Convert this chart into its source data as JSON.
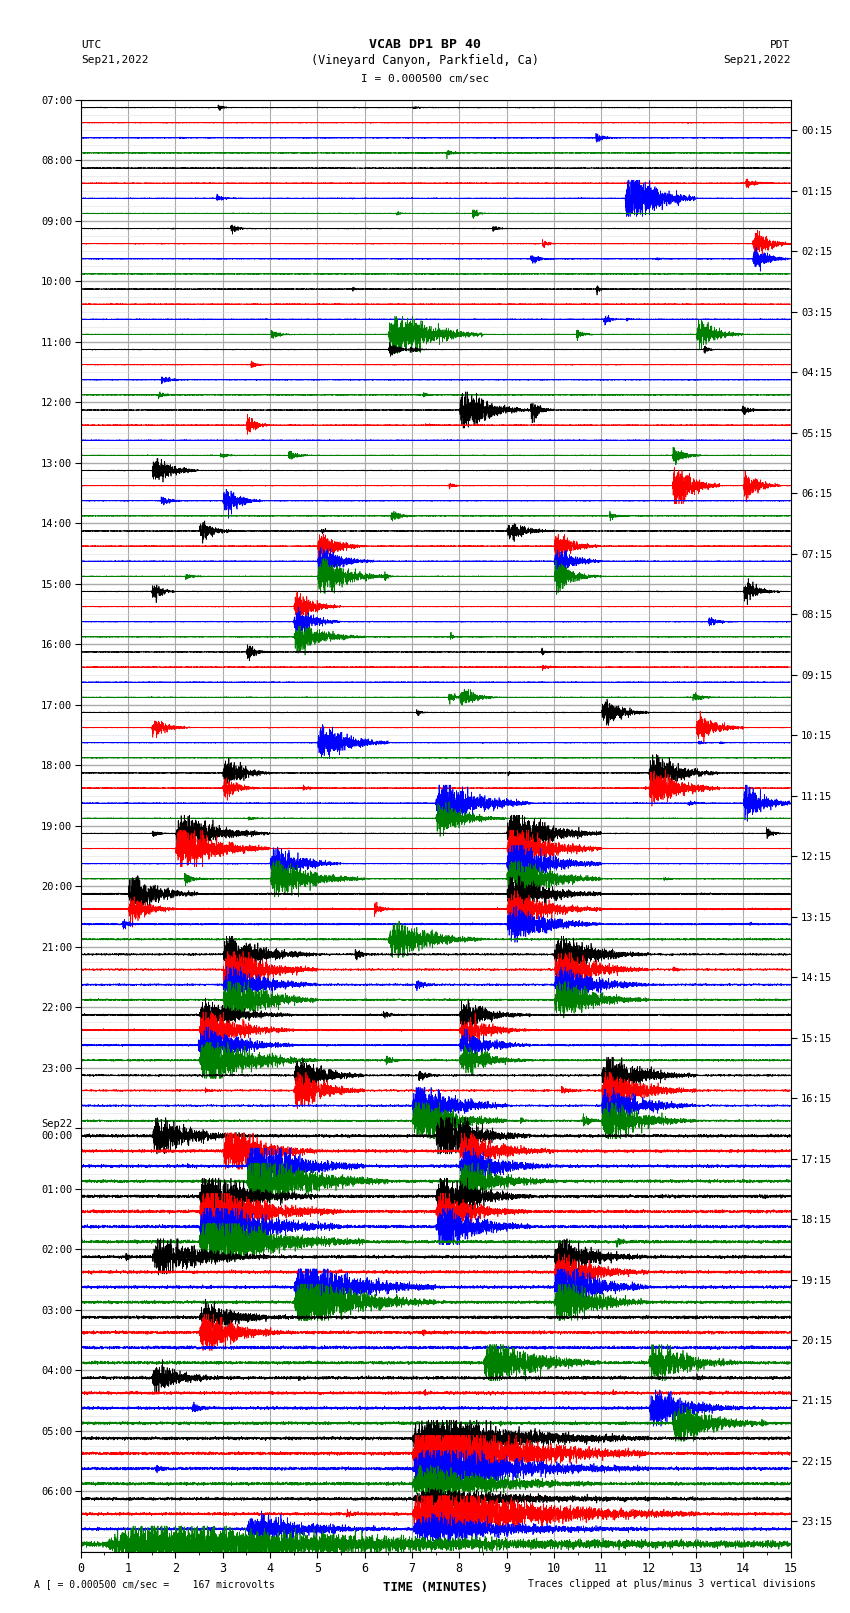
{
  "title_line1": "VCAB DP1 BP 40",
  "title_line2": "(Vineyard Canyon, Parkfield, Ca)",
  "scale_label": "I = 0.000500 cm/sec",
  "left_label_top": "UTC",
  "left_label_date": "Sep21,2022",
  "right_label_top": "PDT",
  "right_label_date": "Sep21,2022",
  "bottom_label": "TIME (MINUTES)",
  "footer_left": "A [ = 0.000500 cm/sec =    167 microvolts",
  "footer_right": "Traces clipped at plus/minus 3 vertical divisions",
  "left_times": [
    "07:00",
    "08:00",
    "09:00",
    "10:00",
    "11:00",
    "12:00",
    "13:00",
    "14:00",
    "15:00",
    "16:00",
    "17:00",
    "18:00",
    "19:00",
    "20:00",
    "21:00",
    "22:00",
    "23:00",
    "Sep22\n00:00",
    "01:00",
    "02:00",
    "03:00",
    "04:00",
    "05:00",
    "06:00"
  ],
  "right_times": [
    "00:15",
    "01:15",
    "02:15",
    "03:15",
    "04:15",
    "05:15",
    "06:15",
    "07:15",
    "08:15",
    "09:15",
    "10:15",
    "11:15",
    "12:15",
    "13:15",
    "14:15",
    "15:15",
    "16:15",
    "17:15",
    "18:15",
    "19:15",
    "20:15",
    "21:15",
    "22:15",
    "23:15"
  ],
  "colors": [
    "black",
    "red",
    "blue",
    "green"
  ],
  "n_rows": 24,
  "n_traces_per_row": 4,
  "minutes": 15,
  "background_color": "white",
  "grid_color": "#aaaaaa",
  "grid_minor_color": "#dddddd",
  "noise_base": 0.03,
  "event_data": [
    {
      "row": 1,
      "trace": 2,
      "time": 11.5,
      "amp": 3.0,
      "dur": 1.5
    },
    {
      "row": 2,
      "trace": 1,
      "time": 14.2,
      "amp": 1.5,
      "dur": 0.8
    },
    {
      "row": 2,
      "trace": 2,
      "time": 14.2,
      "amp": 1.2,
      "dur": 0.8
    },
    {
      "row": 3,
      "trace": 3,
      "time": 6.5,
      "amp": 2.5,
      "dur": 2.0
    },
    {
      "row": 3,
      "trace": 3,
      "time": 13.0,
      "amp": 1.5,
      "dur": 1.0
    },
    {
      "row": 4,
      "trace": 0,
      "time": 6.5,
      "amp": 0.8,
      "dur": 0.5
    },
    {
      "row": 5,
      "trace": 0,
      "time": 8.0,
      "amp": 2.0,
      "dur": 1.5
    },
    {
      "row": 5,
      "trace": 0,
      "time": 9.5,
      "amp": 1.0,
      "dur": 0.5
    },
    {
      "row": 5,
      "trace": 1,
      "time": 3.5,
      "amp": 1.0,
      "dur": 0.5
    },
    {
      "row": 5,
      "trace": 3,
      "time": 12.5,
      "amp": 1.0,
      "dur": 0.6
    },
    {
      "row": 6,
      "trace": 0,
      "time": 1.5,
      "amp": 1.5,
      "dur": 1.0
    },
    {
      "row": 6,
      "trace": 1,
      "time": 12.5,
      "amp": 2.5,
      "dur": 1.0
    },
    {
      "row": 6,
      "trace": 1,
      "time": 14.0,
      "amp": 1.5,
      "dur": 0.8
    },
    {
      "row": 6,
      "trace": 2,
      "time": 3.0,
      "amp": 1.5,
      "dur": 0.8
    },
    {
      "row": 7,
      "trace": 0,
      "time": 2.5,
      "amp": 1.0,
      "dur": 0.8
    },
    {
      "row": 7,
      "trace": 1,
      "time": 5.0,
      "amp": 1.5,
      "dur": 1.0
    },
    {
      "row": 7,
      "trace": 2,
      "time": 5.0,
      "amp": 1.5,
      "dur": 1.2
    },
    {
      "row": 7,
      "trace": 3,
      "time": 5.0,
      "amp": 2.0,
      "dur": 1.5
    },
    {
      "row": 7,
      "trace": 0,
      "time": 9.0,
      "amp": 1.0,
      "dur": 1.0
    },
    {
      "row": 7,
      "trace": 1,
      "time": 10.0,
      "amp": 1.5,
      "dur": 1.0
    },
    {
      "row": 7,
      "trace": 2,
      "time": 10.0,
      "amp": 1.5,
      "dur": 1.0
    },
    {
      "row": 7,
      "trace": 3,
      "time": 10.0,
      "amp": 1.5,
      "dur": 1.0
    },
    {
      "row": 8,
      "trace": 0,
      "time": 1.5,
      "amp": 1.0,
      "dur": 0.5
    },
    {
      "row": 8,
      "trace": 1,
      "time": 4.5,
      "amp": 1.5,
      "dur": 1.0
    },
    {
      "row": 8,
      "trace": 2,
      "time": 4.5,
      "amp": 1.5,
      "dur": 1.0
    },
    {
      "row": 8,
      "trace": 3,
      "time": 4.5,
      "amp": 1.5,
      "dur": 1.5
    },
    {
      "row": 8,
      "trace": 0,
      "time": 14.0,
      "amp": 1.0,
      "dur": 0.8
    },
    {
      "row": 9,
      "trace": 0,
      "time": 3.5,
      "amp": 0.8,
      "dur": 0.5
    },
    {
      "row": 9,
      "trace": 3,
      "time": 8.0,
      "amp": 1.0,
      "dur": 0.8
    },
    {
      "row": 10,
      "trace": 1,
      "time": 1.5,
      "amp": 1.0,
      "dur": 0.8
    },
    {
      "row": 10,
      "trace": 0,
      "time": 11.0,
      "amp": 1.5,
      "dur": 1.0
    },
    {
      "row": 10,
      "trace": 1,
      "time": 13.0,
      "amp": 1.5,
      "dur": 1.0
    },
    {
      "row": 10,
      "trace": 2,
      "time": 5.0,
      "amp": 2.0,
      "dur": 1.5
    },
    {
      "row": 11,
      "trace": 0,
      "time": 3.0,
      "amp": 1.5,
      "dur": 1.0
    },
    {
      "row": 11,
      "trace": 1,
      "time": 3.0,
      "amp": 1.0,
      "dur": 0.8
    },
    {
      "row": 11,
      "trace": 2,
      "time": 7.5,
      "amp": 2.5,
      "dur": 2.0
    },
    {
      "row": 11,
      "trace": 3,
      "time": 7.5,
      "amp": 1.5,
      "dur": 1.5
    },
    {
      "row": 11,
      "trace": 0,
      "time": 12.0,
      "amp": 2.0,
      "dur": 1.5
    },
    {
      "row": 11,
      "trace": 1,
      "time": 12.0,
      "amp": 2.0,
      "dur": 1.5
    },
    {
      "row": 11,
      "trace": 2,
      "time": 14.0,
      "amp": 2.0,
      "dur": 1.5
    },
    {
      "row": 12,
      "trace": 0,
      "time": 2.0,
      "amp": 2.0,
      "dur": 2.0
    },
    {
      "row": 12,
      "trace": 1,
      "time": 2.0,
      "amp": 2.5,
      "dur": 2.0
    },
    {
      "row": 12,
      "trace": 2,
      "time": 4.0,
      "amp": 2.0,
      "dur": 1.5
    },
    {
      "row": 12,
      "trace": 3,
      "time": 4.0,
      "amp": 2.0,
      "dur": 2.0
    },
    {
      "row": 12,
      "trace": 0,
      "time": 9.0,
      "amp": 2.5,
      "dur": 2.0
    },
    {
      "row": 12,
      "trace": 1,
      "time": 9.0,
      "amp": 2.5,
      "dur": 2.0
    },
    {
      "row": 12,
      "trace": 2,
      "time": 9.0,
      "amp": 2.5,
      "dur": 2.0
    },
    {
      "row": 12,
      "trace": 3,
      "time": 9.0,
      "amp": 2.5,
      "dur": 2.0
    },
    {
      "row": 13,
      "trace": 0,
      "time": 1.0,
      "amp": 2.0,
      "dur": 1.5
    },
    {
      "row": 13,
      "trace": 1,
      "time": 1.0,
      "amp": 1.5,
      "dur": 1.0
    },
    {
      "row": 13,
      "trace": 3,
      "time": 6.5,
      "amp": 2.0,
      "dur": 2.0
    },
    {
      "row": 13,
      "trace": 0,
      "time": 9.0,
      "amp": 2.0,
      "dur": 2.0
    },
    {
      "row": 13,
      "trace": 1,
      "time": 9.0,
      "amp": 2.0,
      "dur": 2.0
    },
    {
      "row": 13,
      "trace": 2,
      "time": 9.0,
      "amp": 2.0,
      "dur": 2.0
    },
    {
      "row": 14,
      "trace": 0,
      "time": 3.0,
      "amp": 2.0,
      "dur": 2.0
    },
    {
      "row": 14,
      "trace": 1,
      "time": 3.0,
      "amp": 2.5,
      "dur": 2.0
    },
    {
      "row": 14,
      "trace": 2,
      "time": 3.0,
      "amp": 2.0,
      "dur": 2.0
    },
    {
      "row": 14,
      "trace": 3,
      "time": 3.0,
      "amp": 2.5,
      "dur": 2.0
    },
    {
      "row": 14,
      "trace": 0,
      "time": 10.0,
      "amp": 2.0,
      "dur": 2.0
    },
    {
      "row": 14,
      "trace": 1,
      "time": 10.0,
      "amp": 2.0,
      "dur": 2.0
    },
    {
      "row": 14,
      "trace": 2,
      "time": 10.0,
      "amp": 2.0,
      "dur": 2.0
    },
    {
      "row": 14,
      "trace": 3,
      "time": 10.0,
      "amp": 2.0,
      "dur": 2.0
    },
    {
      "row": 15,
      "trace": 0,
      "time": 2.5,
      "amp": 1.5,
      "dur": 2.0
    },
    {
      "row": 15,
      "trace": 1,
      "time": 2.5,
      "amp": 2.0,
      "dur": 2.0
    },
    {
      "row": 15,
      "trace": 2,
      "time": 2.5,
      "amp": 2.0,
      "dur": 2.0
    },
    {
      "row": 15,
      "trace": 3,
      "time": 2.5,
      "amp": 2.5,
      "dur": 2.5
    },
    {
      "row": 15,
      "trace": 0,
      "time": 8.0,
      "amp": 1.5,
      "dur": 1.5
    },
    {
      "row": 15,
      "trace": 1,
      "time": 8.0,
      "amp": 1.5,
      "dur": 1.5
    },
    {
      "row": 15,
      "trace": 2,
      "time": 8.0,
      "amp": 1.5,
      "dur": 1.5
    },
    {
      "row": 15,
      "trace": 3,
      "time": 8.0,
      "amp": 1.5,
      "dur": 1.5
    },
    {
      "row": 16,
      "trace": 0,
      "time": 4.5,
      "amp": 2.0,
      "dur": 1.5
    },
    {
      "row": 16,
      "trace": 1,
      "time": 4.5,
      "amp": 2.0,
      "dur": 1.5
    },
    {
      "row": 16,
      "trace": 2,
      "time": 7.0,
      "amp": 2.5,
      "dur": 2.0
    },
    {
      "row": 16,
      "trace": 3,
      "time": 7.0,
      "amp": 2.5,
      "dur": 2.0
    },
    {
      "row": 16,
      "trace": 0,
      "time": 11.0,
      "amp": 2.0,
      "dur": 2.0
    },
    {
      "row": 16,
      "trace": 1,
      "time": 11.0,
      "amp": 2.0,
      "dur": 2.0
    },
    {
      "row": 16,
      "trace": 2,
      "time": 11.0,
      "amp": 2.0,
      "dur": 2.0
    },
    {
      "row": 16,
      "trace": 3,
      "time": 11.0,
      "amp": 2.0,
      "dur": 2.0
    },
    {
      "row": 17,
      "trace": 0,
      "time": 1.5,
      "amp": 2.0,
      "dur": 2.0
    },
    {
      "row": 17,
      "trace": 1,
      "time": 3.0,
      "amp": 2.5,
      "dur": 2.0
    },
    {
      "row": 17,
      "trace": 2,
      "time": 3.5,
      "amp": 3.0,
      "dur": 2.5
    },
    {
      "row": 17,
      "trace": 3,
      "time": 3.5,
      "amp": 3.0,
      "dur": 3.0
    },
    {
      "row": 17,
      "trace": 0,
      "time": 7.5,
      "amp": 2.5,
      "dur": 2.0
    },
    {
      "row": 17,
      "trace": 1,
      "time": 8.0,
      "amp": 2.0,
      "dur": 2.0
    },
    {
      "row": 17,
      "trace": 2,
      "time": 8.0,
      "amp": 2.0,
      "dur": 2.0
    },
    {
      "row": 17,
      "trace": 3,
      "time": 8.0,
      "amp": 2.0,
      "dur": 2.0
    },
    {
      "row": 18,
      "trace": 0,
      "time": 2.5,
      "amp": 2.5,
      "dur": 2.5
    },
    {
      "row": 18,
      "trace": 1,
      "time": 2.5,
      "amp": 3.0,
      "dur": 3.0
    },
    {
      "row": 18,
      "trace": 2,
      "time": 2.5,
      "amp": 3.0,
      "dur": 3.0
    },
    {
      "row": 18,
      "trace": 3,
      "time": 2.5,
      "amp": 3.0,
      "dur": 3.5
    },
    {
      "row": 18,
      "trace": 0,
      "time": 7.5,
      "amp": 2.5,
      "dur": 2.0
    },
    {
      "row": 18,
      "trace": 1,
      "time": 7.5,
      "amp": 2.0,
      "dur": 2.0
    },
    {
      "row": 18,
      "trace": 2,
      "time": 7.5,
      "amp": 2.5,
      "dur": 2.0
    },
    {
      "row": 19,
      "trace": 0,
      "time": 1.5,
      "amp": 2.0,
      "dur": 2.5
    },
    {
      "row": 19,
      "trace": 2,
      "time": 4.5,
      "amp": 3.0,
      "dur": 3.0
    },
    {
      "row": 19,
      "trace": 3,
      "time": 4.5,
      "amp": 3.0,
      "dur": 3.0
    },
    {
      "row": 19,
      "trace": 0,
      "time": 10.0,
      "amp": 2.0,
      "dur": 2.0
    },
    {
      "row": 19,
      "trace": 1,
      "time": 10.0,
      "amp": 2.0,
      "dur": 2.0
    },
    {
      "row": 19,
      "trace": 2,
      "time": 10.0,
      "amp": 2.5,
      "dur": 2.0
    },
    {
      "row": 19,
      "trace": 3,
      "time": 10.0,
      "amp": 2.5,
      "dur": 2.0
    },
    {
      "row": 20,
      "trace": 0,
      "time": 2.5,
      "amp": 1.5,
      "dur": 2.0
    },
    {
      "row": 20,
      "trace": 1,
      "time": 2.5,
      "amp": 2.0,
      "dur": 2.0
    },
    {
      "row": 20,
      "trace": 3,
      "time": 8.5,
      "amp": 2.5,
      "dur": 2.5
    },
    {
      "row": 20,
      "trace": 3,
      "time": 12.0,
      "amp": 2.0,
      "dur": 2.0
    },
    {
      "row": 21,
      "trace": 0,
      "time": 1.5,
      "amp": 1.5,
      "dur": 1.5
    },
    {
      "row": 21,
      "trace": 2,
      "time": 12.0,
      "amp": 2.0,
      "dur": 2.0
    },
    {
      "row": 21,
      "trace": 3,
      "time": 12.5,
      "amp": 2.0,
      "dur": 2.0
    },
    {
      "row": 22,
      "trace": 1,
      "time": 7.0,
      "amp": 3.0,
      "dur": 5.0
    },
    {
      "row": 22,
      "trace": 1,
      "time": 7.0,
      "amp": 2.5,
      "dur": 5.0
    },
    {
      "row": 22,
      "trace": 2,
      "time": 7.0,
      "amp": 2.5,
      "dur": 5.0
    },
    {
      "row": 22,
      "trace": 3,
      "time": 7.0,
      "amp": 2.0,
      "dur": 4.0
    },
    {
      "row": 22,
      "trace": 0,
      "time": 7.0,
      "amp": 2.5,
      "dur": 5.0
    },
    {
      "row": 23,
      "trace": 1,
      "time": 7.0,
      "amp": 3.0,
      "dur": 6.0
    },
    {
      "row": 23,
      "trace": 2,
      "time": 3.5,
      "amp": 1.5,
      "dur": 3.0
    },
    {
      "row": 23,
      "trace": 2,
      "time": 7.0,
      "amp": 1.5,
      "dur": 5.0
    },
    {
      "row": 23,
      "trace": 3,
      "time": 0.5,
      "amp": 2.0,
      "dur": 14.5
    },
    {
      "row": 23,
      "trace": 0,
      "time": 7.0,
      "amp": 1.0,
      "dur": 6.0
    }
  ]
}
